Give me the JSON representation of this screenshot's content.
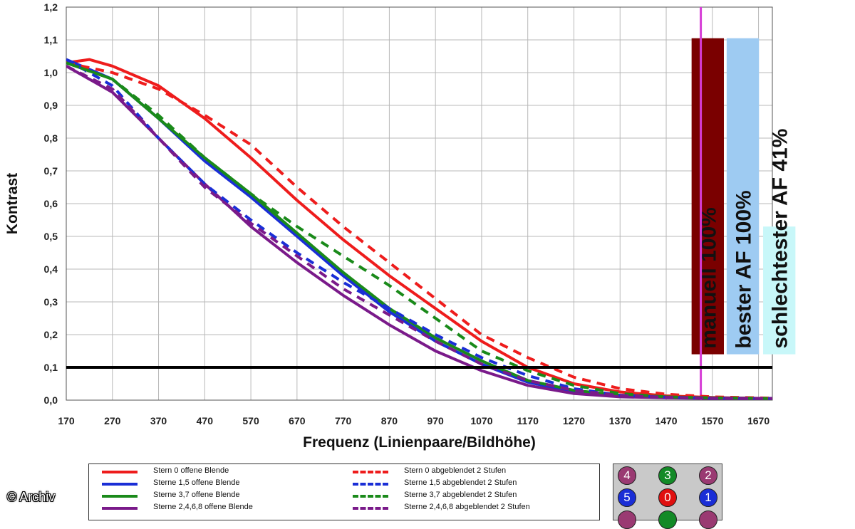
{
  "chart_data": {
    "type": "line",
    "title": "",
    "xlabel": "Frequenz (Linienpaare/Bildhöhe)",
    "ylabel": "Kontrast",
    "xlim": [
      170,
      1700
    ],
    "ylim": [
      0,
      1.2
    ],
    "xticks": [
      170,
      270,
      370,
      470,
      570,
      670,
      770,
      870,
      970,
      1070,
      1170,
      1270,
      1370,
      1470,
      1570,
      1670
    ],
    "yticks": [
      "0,0",
      "0,1",
      "0,2",
      "0,3",
      "0,4",
      "0,5",
      "0,6",
      "0,7",
      "0,8",
      "0,9",
      "1,0",
      "1,1",
      "1,2"
    ],
    "grid": true,
    "reference_line": {
      "y": 0.1,
      "color": "#000000"
    },
    "marker_line": {
      "x": 1545,
      "color": "#d63cd6"
    },
    "series": [
      {
        "name": "Stern 0 offene Blende",
        "color": "#ee1c1c",
        "dash": false,
        "x": [
          170,
          220,
          270,
          370,
          470,
          570,
          670,
          770,
          870,
          970,
          1070,
          1170,
          1270,
          1370,
          1470,
          1570,
          1700
        ],
        "y": [
          1.03,
          1.04,
          1.02,
          0.96,
          0.86,
          0.74,
          0.61,
          0.49,
          0.38,
          0.28,
          0.18,
          0.1,
          0.05,
          0.025,
          0.013,
          0.008,
          0.005
        ]
      },
      {
        "name": "Sterne 1,5 offene Blende",
        "color": "#1a2ed6",
        "dash": false,
        "x": [
          170,
          270,
          370,
          470,
          570,
          670,
          770,
          870,
          970,
          1070,
          1170,
          1270,
          1370,
          1470,
          1570,
          1700
        ],
        "y": [
          1.04,
          0.98,
          0.86,
          0.73,
          0.62,
          0.5,
          0.38,
          0.27,
          0.18,
          0.11,
          0.055,
          0.025,
          0.012,
          0.008,
          0.006,
          0.005
        ]
      },
      {
        "name": "Sterne 3,7 offene Blende",
        "color": "#1a8a1a",
        "dash": false,
        "x": [
          170,
          270,
          370,
          470,
          570,
          670,
          770,
          870,
          970,
          1070,
          1170,
          1270,
          1370,
          1470,
          1570,
          1700
        ],
        "y": [
          1.03,
          0.98,
          0.86,
          0.74,
          0.63,
          0.51,
          0.39,
          0.28,
          0.19,
          0.12,
          0.06,
          0.03,
          0.015,
          0.01,
          0.007,
          0.005
        ]
      },
      {
        "name": "Sterne 2,4,6,8 offene Blende",
        "color": "#7a1a8a",
        "dash": false,
        "x": [
          170,
          270,
          370,
          470,
          570,
          670,
          770,
          870,
          970,
          1070,
          1170,
          1270,
          1370,
          1470,
          1570,
          1700
        ],
        "y": [
          1.02,
          0.94,
          0.8,
          0.66,
          0.53,
          0.42,
          0.32,
          0.23,
          0.15,
          0.09,
          0.045,
          0.02,
          0.01,
          0.007,
          0.005,
          0.005
        ]
      },
      {
        "name": "Stern 0 abgeblendet 2 Stufen",
        "color": "#ee1c1c",
        "dash": true,
        "x": [
          170,
          270,
          370,
          470,
          570,
          670,
          770,
          870,
          970,
          1070,
          1170,
          1270,
          1370,
          1470,
          1570,
          1700
        ],
        "y": [
          1.03,
          1.0,
          0.95,
          0.87,
          0.78,
          0.65,
          0.53,
          0.42,
          0.31,
          0.2,
          0.13,
          0.07,
          0.035,
          0.018,
          0.01,
          0.006
        ]
      },
      {
        "name": "Sterne 1,5 abgeblendet 2 Stufen",
        "color": "#1a2ed6",
        "dash": true,
        "x": [
          170,
          270,
          370,
          470,
          570,
          670,
          770,
          870,
          970,
          1070,
          1170,
          1270,
          1370,
          1470,
          1570,
          1700
        ],
        "y": [
          1.04,
          0.96,
          0.8,
          0.66,
          0.55,
          0.45,
          0.36,
          0.28,
          0.2,
          0.13,
          0.075,
          0.035,
          0.015,
          0.009,
          0.006,
          0.005
        ]
      },
      {
        "name": "Sterne 3,7 abgeblendet 2 Stufen",
        "color": "#1a8a1a",
        "dash": true,
        "x": [
          170,
          270,
          370,
          470,
          570,
          670,
          770,
          870,
          970,
          1070,
          1170,
          1270,
          1370,
          1470,
          1570,
          1700
        ],
        "y": [
          1.03,
          0.98,
          0.87,
          0.74,
          0.63,
          0.53,
          0.44,
          0.35,
          0.25,
          0.15,
          0.09,
          0.045,
          0.02,
          0.01,
          0.007,
          0.005
        ]
      },
      {
        "name": "Sterne 2,4,6,8 abgeblendet 2 Stufen",
        "color": "#7a1a8a",
        "dash": true,
        "x": [
          170,
          270,
          370,
          470,
          570,
          670,
          770,
          870,
          970,
          1070,
          1170,
          1270,
          1370,
          1470,
          1570,
          1700
        ],
        "y": [
          1.02,
          0.95,
          0.8,
          0.65,
          0.54,
          0.44,
          0.34,
          0.26,
          0.18,
          0.11,
          0.06,
          0.03,
          0.014,
          0.009,
          0.006,
          0.005
        ]
      }
    ],
    "annotations": [
      {
        "text": "manuell 100%",
        "color": "#7a0000",
        "x_range": [
          1525,
          1595
        ],
        "y_range": [
          0.14,
          1.105
        ]
      },
      {
        "text": "bester AF 100%",
        "color": "#9ecbf2",
        "x_range": [
          1601,
          1671
        ],
        "y_range": [
          0.14,
          1.105
        ]
      },
      {
        "text": "schlechtester AF 41%",
        "color": "#c8f7f9",
        "x_range": [
          1680,
          1750
        ],
        "y_range": [
          0.14,
          0.53
        ]
      }
    ]
  },
  "stars": [
    {
      "label": "4",
      "color": "#9a3a72"
    },
    {
      "label": "3",
      "color": "#138a27"
    },
    {
      "label": "2",
      "color": "#9a3a72"
    },
    {
      "label": "5",
      "color": "#1a2ed6"
    },
    {
      "label": "0",
      "color": "#e01010"
    },
    {
      "label": "1",
      "color": "#1a2ed6"
    },
    {
      "label": "",
      "color": "#9a3a72"
    },
    {
      "label": "",
      "color": "#138a27"
    },
    {
      "label": "",
      "color": "#9a3a72"
    }
  ],
  "copyright": "© Archiv"
}
